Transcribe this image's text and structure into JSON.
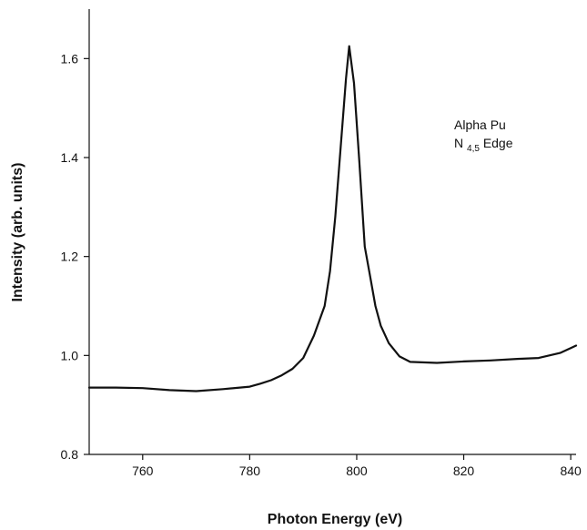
{
  "chart_data": {
    "type": "line",
    "title": "",
    "xlabel": "Photon Energy (eV)",
    "ylabel": "Intensity (arb. units)",
    "xlim": [
      750,
      841
    ],
    "ylim": [
      0.8,
      1.7
    ],
    "xticks": [
      760,
      780,
      800,
      820,
      840
    ],
    "xtick_labels": [
      "760",
      "780",
      "800",
      "820",
      "840"
    ],
    "yticks": [
      0.8,
      1.0,
      1.2,
      1.4,
      1.6
    ],
    "ytick_labels": [
      "0.8",
      "1.0",
      "1.2",
      "1.4",
      "1.6"
    ],
    "grid": false,
    "annotation": {
      "line1": "Alpha Pu",
      "line2_base": "N",
      "line2_sub": "4,5",
      "line2_rest": " Edge"
    },
    "series": [
      {
        "x": [
          750,
          755,
          760,
          765,
          770,
          775,
          780,
          782,
          784,
          786,
          788,
          790,
          792,
          794,
          795,
          796,
          797,
          798,
          798.6,
          799.5,
          800.5,
          801.5,
          802.5,
          803.5,
          804.5,
          806,
          808,
          810,
          815,
          820,
          825,
          830,
          834,
          838,
          840,
          841
        ],
        "y": [
          0.935,
          0.935,
          0.934,
          0.93,
          0.928,
          0.932,
          0.937,
          0.943,
          0.95,
          0.96,
          0.973,
          0.995,
          1.04,
          1.1,
          1.17,
          1.28,
          1.42,
          1.56,
          1.625,
          1.55,
          1.39,
          1.22,
          1.16,
          1.1,
          1.06,
          1.025,
          0.998,
          0.987,
          0.985,
          0.988,
          0.99,
          0.993,
          0.995,
          1.005,
          1.015,
          1.02
        ],
        "color": "#111111"
      }
    ]
  }
}
